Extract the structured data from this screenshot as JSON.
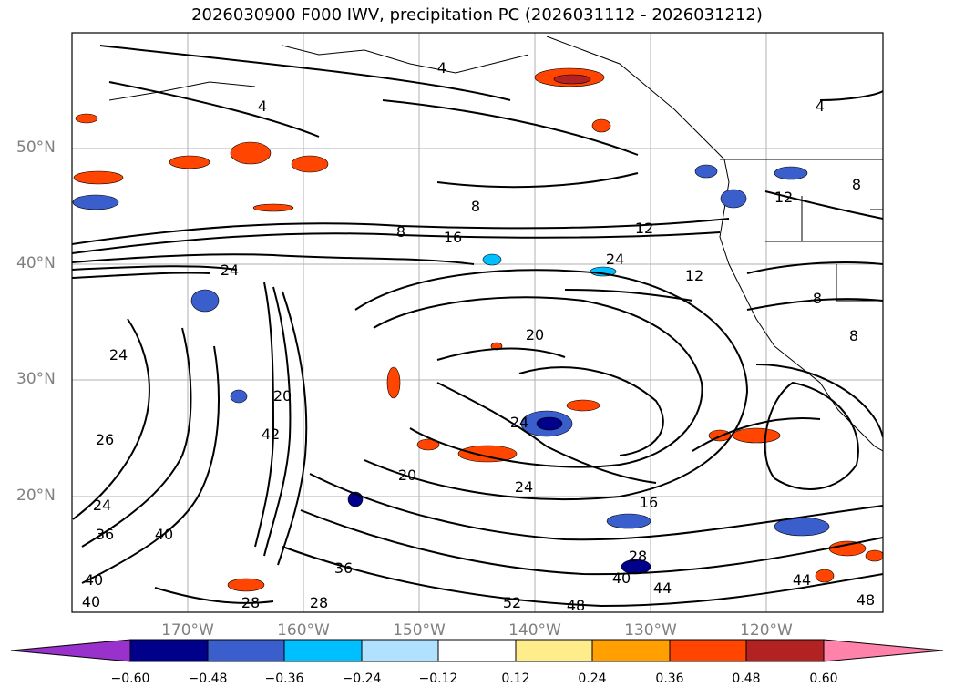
{
  "title": "2026030900 F000 IWV, precipitation PC (2026031112 - 2026031212)",
  "map": {
    "lat_labels": [
      "50°N",
      "40°N",
      "30°N",
      "20°N"
    ],
    "lon_labels": [
      "170°W",
      "160°W",
      "150°W",
      "140°W",
      "130°W",
      "120°W"
    ],
    "contour_labels": [
      "4",
      "4",
      "4",
      "8",
      "8",
      "8",
      "8",
      "8",
      "12",
      "12",
      "12",
      "16",
      "16",
      "20",
      "20",
      "20",
      "24",
      "24",
      "24",
      "24",
      "24",
      "24",
      "26",
      "28",
      "28",
      "28",
      "36",
      "36",
      "40",
      "40",
      "40",
      "40",
      "42",
      "44",
      "44",
      "48",
      "48",
      "52"
    ],
    "land_color": "#ffffff",
    "grid_color": "#b0b0b0"
  },
  "colorbar": {
    "colors": [
      "#9932cc",
      "#00008b",
      "#3a5fcd",
      "#00bfff",
      "#b0e2ff",
      "#ffffff",
      "#ffec8b",
      "#ff9f00",
      "#ff4500",
      "#b22222",
      "#ff82ab"
    ],
    "tick_labels": [
      "−0.60",
      "−0.48",
      "−0.36",
      "−0.24",
      "−0.12",
      "0.12",
      "0.24",
      "0.36",
      "0.48",
      "0.60"
    ]
  }
}
